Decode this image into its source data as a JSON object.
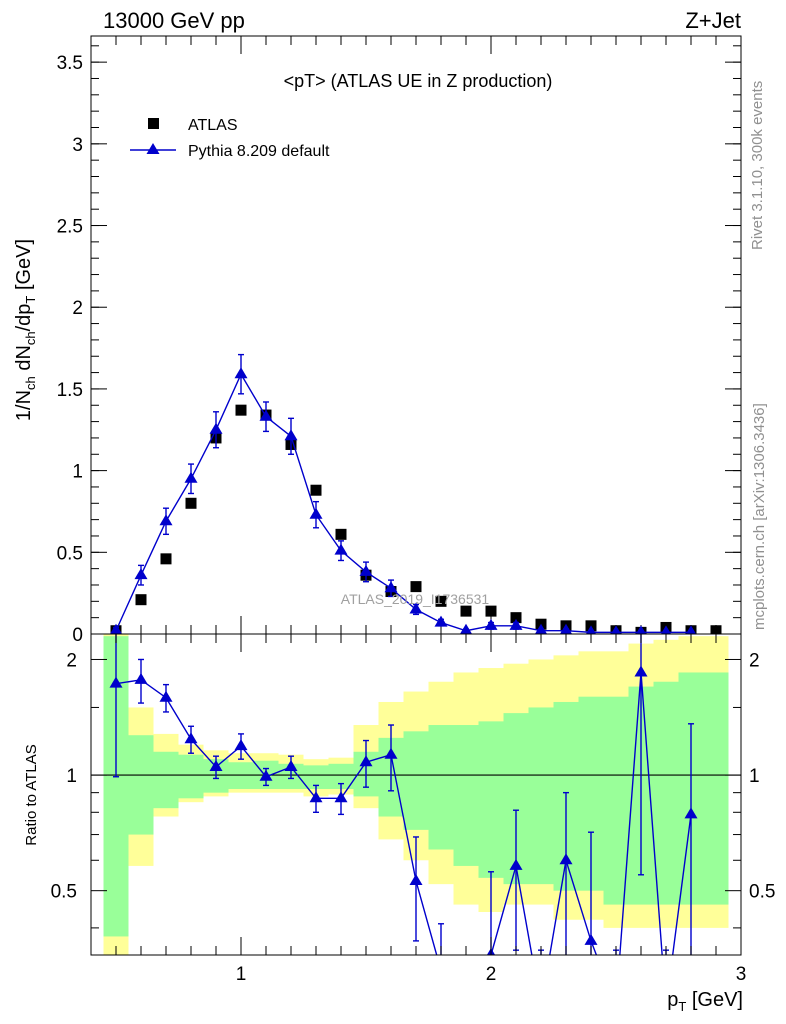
{
  "header": {
    "beam": "13000 GeV pp",
    "process": "Z+Jet"
  },
  "side_labels": {
    "rivet": "Rivet 3.1.10,  300k events",
    "mcplots": "mcplots.cern.ch [arXiv:1306.3436]"
  },
  "watermark": "ATLAS_2019_I1736531",
  "chart_data": [
    {
      "type": "scatter",
      "panel": "main",
      "title": "<pT> (ATLAS UE in Z production)",
      "ylabel": "1/N_ch dN_ch/dp_T [GeV]",
      "xlabel": "p_T [GeV]",
      "xlim": [
        0.4,
        3.0
      ],
      "ylim": [
        0,
        3.66
      ],
      "x_ticks": [
        "1",
        "2",
        "3"
      ],
      "y_ticks": [
        "0",
        "0.5",
        "1",
        "1.5",
        "2",
        "2.5",
        "3",
        "3.5"
      ],
      "legend_position": "top-left",
      "x": [
        0.5,
        0.6,
        0.7,
        0.8,
        0.9,
        1.0,
        1.1,
        1.2,
        1.3,
        1.4,
        1.5,
        1.6,
        1.7,
        1.8,
        1.9,
        2.0,
        2.1,
        2.2,
        2.3,
        2.4,
        2.5,
        2.6,
        2.7,
        2.8,
        2.9
      ],
      "series": [
        {
          "name": "ATLAS",
          "marker": "square",
          "color": "#000000",
          "values": [
            0.02,
            0.21,
            0.46,
            0.8,
            1.2,
            1.37,
            1.34,
            1.16,
            0.88,
            0.61,
            0.36,
            0.26,
            0.29,
            0.2,
            0.14,
            0.14,
            0.1,
            0.06,
            0.05,
            0.05,
            0.02,
            0.01,
            0.04,
            0.02,
            0.02
          ]
        },
        {
          "name": "Pythia 8.209 default",
          "marker": "triangle",
          "color": "#0000cc",
          "x": [
            0.5,
            0.6,
            0.7,
            0.8,
            0.9,
            1.0,
            1.1,
            1.2,
            1.3,
            1.4,
            1.5,
            1.6,
            1.7,
            1.8,
            1.9,
            2.0,
            2.1,
            2.2,
            2.3,
            2.4,
            2.5,
            2.6,
            2.7,
            2.8
          ],
          "values": [
            0.02,
            0.36,
            0.69,
            0.95,
            1.25,
            1.59,
            1.33,
            1.21,
            0.73,
            0.51,
            0.38,
            0.28,
            0.15,
            0.07,
            0.02,
            0.05,
            0.05,
            0.02,
            0.02,
            0.01,
            0.01,
            0.01,
            0.01,
            0.01
          ],
          "errors": [
            0.02,
            0.06,
            0.08,
            0.09,
            0.11,
            0.12,
            0.09,
            0.11,
            0.08,
            0.06,
            0.06,
            0.05,
            0.03,
            0.02,
            0.01,
            0.02,
            0.02,
            0.01,
            0.01,
            0.01,
            0.01,
            0.01,
            0.01,
            0.01
          ]
        }
      ]
    },
    {
      "type": "line",
      "panel": "ratio",
      "ylabel": "Ratio to ATLAS",
      "xlabel": "p_T [GeV]",
      "xlim": [
        0.4,
        3.0
      ],
      "ylim": [
        0.34,
        2.33
      ],
      "y_ticks": [
        "0.5",
        "1",
        "2"
      ],
      "reference": 1.0,
      "bands": {
        "edges": [
          0.45,
          0.55,
          0.65,
          0.75,
          0.85,
          0.95,
          1.05,
          1.15,
          1.25,
          1.35,
          1.45,
          1.55,
          1.65,
          1.75,
          1.85,
          1.95,
          2.05,
          2.15,
          2.25,
          2.35,
          2.45,
          2.55,
          2.65,
          2.75,
          2.85,
          2.95
        ],
        "green_color": "#99ff99",
        "yellow_color": "#ffff99",
        "green_lo": [
          0.38,
          0.7,
          0.82,
          0.87,
          0.9,
          0.92,
          0.92,
          0.92,
          0.92,
          0.92,
          0.88,
          0.78,
          0.72,
          0.64,
          0.58,
          0.54,
          0.52,
          0.52,
          0.5,
          0.5,
          0.46,
          0.46,
          0.46,
          0.46,
          0.46
        ],
        "green_hi": [
          2.3,
          1.27,
          1.15,
          1.13,
          1.1,
          1.08,
          1.09,
          1.07,
          1.06,
          1.07,
          1.15,
          1.25,
          1.3,
          1.35,
          1.35,
          1.38,
          1.45,
          1.5,
          1.55,
          1.6,
          1.6,
          1.7,
          1.75,
          1.85,
          1.85
        ],
        "yellow_lo": [
          0.34,
          0.58,
          0.78,
          0.85,
          0.88,
          0.9,
          0.9,
          0.9,
          0.88,
          0.89,
          0.82,
          0.68,
          0.6,
          0.52,
          0.46,
          0.44,
          0.46,
          0.46,
          0.42,
          0.42,
          0.4,
          0.4,
          0.4,
          0.4,
          0.4
        ],
        "yellow_hi": [
          2.33,
          1.5,
          1.28,
          1.2,
          1.16,
          1.14,
          1.14,
          1.13,
          1.1,
          1.11,
          1.35,
          1.55,
          1.65,
          1.75,
          1.85,
          1.9,
          1.95,
          2.0,
          2.05,
          2.1,
          2.1,
          2.2,
          2.25,
          2.3,
          2.3
        ]
      },
      "series": [
        {
          "name": "Pythia 8.209 default",
          "color": "#0000cc",
          "x": [
            0.5,
            0.6,
            0.7,
            0.8,
            0.9,
            1.0,
            1.1,
            1.2,
            1.3,
            1.4,
            1.5,
            1.6,
            1.7,
            1.8,
            1.9,
            2.0,
            2.1,
            2.2,
            2.3,
            2.4,
            2.5,
            2.6,
            2.7,
            2.8
          ],
          "values": [
            1.73,
            1.77,
            1.59,
            1.24,
            1.05,
            1.19,
            0.99,
            1.05,
            0.87,
            0.87,
            1.08,
            1.13,
            0.53,
            0.31,
            0.2,
            0.34,
            0.58,
            0.25,
            0.6,
            0.37,
            0.25,
            1.85,
            0.25,
            0.79
          ],
          "errors": [
            0.74,
            0.23,
            0.13,
            0.1,
            0.07,
            0.09,
            0.05,
            0.07,
            0.07,
            0.08,
            0.15,
            0.22,
            0.16,
            0.1,
            0.1,
            0.22,
            0.23,
            0.1,
            0.3,
            0.34,
            0.1,
            1.3,
            0.1,
            0.57
          ]
        }
      ]
    }
  ]
}
